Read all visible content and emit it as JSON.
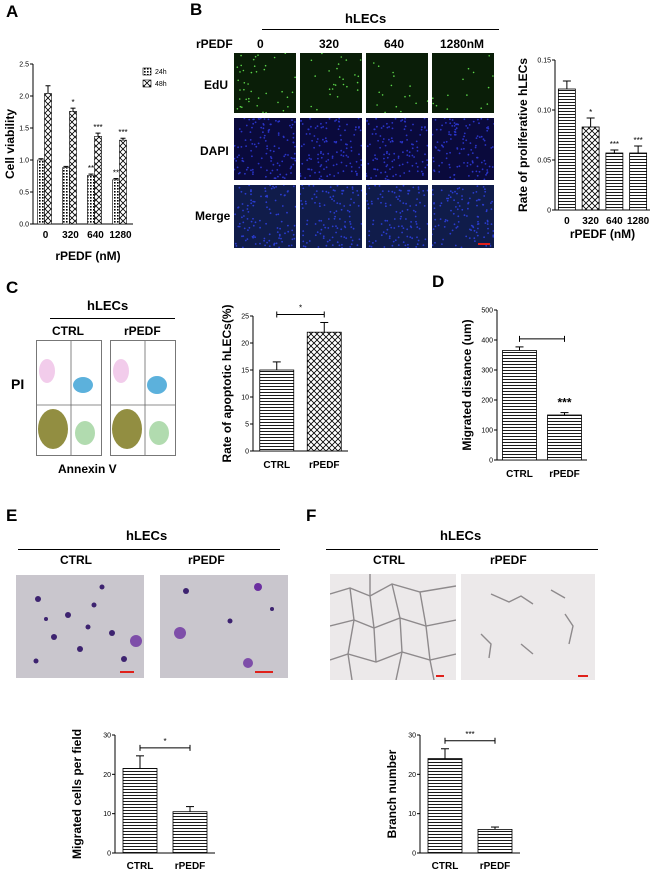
{
  "panels": {
    "A": {
      "label": "A",
      "chart_data": {
        "type": "bar",
        "categories": [
          "0",
          "320",
          "640",
          "1280"
        ],
        "series": [
          {
            "name": "24h",
            "values": [
              1.0,
              0.88,
              0.76,
              0.69
            ],
            "errors": [
              0.02,
              0.02,
              0.02,
              0.02
            ]
          },
          {
            "name": "48h",
            "values": [
              2.04,
              1.76,
              1.37,
              1.31
            ],
            "errors": [
              0.12,
              0.05,
              0.05,
              0.03
            ]
          }
        ],
        "significance_24h": [
          "",
          "",
          "**",
          "**"
        ],
        "significance_48h": [
          "",
          "*",
          "***",
          "***"
        ],
        "yticks": [
          "0.0",
          "0.5",
          "1.0",
          "1.5",
          "2.0",
          "2.5"
        ],
        "ylim": [
          0,
          2.5
        ],
        "xlabel": "rPEDF (nM)",
        "ylabel": "Cell viability",
        "legend_position": "top-right"
      }
    },
    "B": {
      "label": "B",
      "header": "hLECs",
      "row_header": "rPEDF",
      "columns": [
        "0",
        "320",
        "640",
        "1280nM"
      ],
      "rows": [
        "EdU",
        "DAPI",
        "Merge"
      ],
      "chart_data": {
        "type": "bar",
        "categories": [
          "0",
          "320",
          "640",
          "1280"
        ],
        "values": [
          0.121,
          0.083,
          0.057,
          0.057
        ],
        "errors": [
          0.008,
          0.009,
          0.003,
          0.007
        ],
        "significance": [
          "",
          "*",
          "***",
          "***"
        ],
        "yticks": [
          "0",
          "0.05",
          "0.10",
          "0.15"
        ],
        "ylim": [
          0,
          0.15
        ],
        "xlabel": "rPEDF (nM)",
        "ylabel": "Rate of proliferative hLECs"
      }
    },
    "C": {
      "label": "C",
      "header": "hLECs",
      "columns": [
        "CTRL",
        "rPEDF"
      ],
      "y_axis_label": "PI",
      "x_axis_label": "Annexin V",
      "chart_data": {
        "type": "bar",
        "categories": [
          "CTRL",
          "rPEDF"
        ],
        "values": [
          15.0,
          22.0
        ],
        "errors": [
          1.5,
          1.8
        ],
        "significance": "*",
        "yticks": [
          "0",
          "5",
          "10",
          "15",
          "20",
          "25"
        ],
        "ylim": [
          0,
          25
        ],
        "ylabel": "Rate of apoptotic hLECs(%)"
      }
    },
    "D": {
      "label": "D",
      "chart_data": {
        "type": "bar",
        "categories": [
          "CTRL",
          "rPEDF"
        ],
        "values": [
          365,
          150
        ],
        "errors": [
          12,
          8
        ],
        "significance": "***",
        "yticks": [
          "0",
          "100",
          "200",
          "300",
          "400",
          "500"
        ],
        "ylim": [
          0,
          500
        ],
        "ylabel": "Migrated distance (um)"
      }
    },
    "E": {
      "label": "E",
      "header": "hLECs",
      "columns": [
        "CTRL",
        "rPEDF"
      ],
      "chart_data": {
        "type": "bar",
        "categories": [
          "CTRL",
          "rPEDF"
        ],
        "values": [
          21.5,
          10.5
        ],
        "errors": [
          3.2,
          1.3
        ],
        "significance": "*",
        "yticks": [
          "0",
          "10",
          "20",
          "30"
        ],
        "ylim": [
          0,
          30
        ],
        "ylabel": "Migrated cells per field"
      }
    },
    "F": {
      "label": "F",
      "header": "hLECs",
      "columns": [
        "CTRL",
        "rPEDF"
      ],
      "chart_data": {
        "type": "bar",
        "categories": [
          "CTRL",
          "rPEDF"
        ],
        "values": [
          24,
          6
        ],
        "errors": [
          2.5,
          0.6
        ],
        "significance": "***",
        "yticks": [
          "0",
          "10",
          "20",
          "30"
        ],
        "ylim": [
          0,
          30
        ],
        "ylabel": "Branch number"
      }
    }
  },
  "colors": {
    "edu": "#0a1e08",
    "dapi": "#0a0a3c",
    "merge": "#101c4a",
    "scalebar": "#e0201a",
    "crystal_violet": "#6b2fa0"
  }
}
